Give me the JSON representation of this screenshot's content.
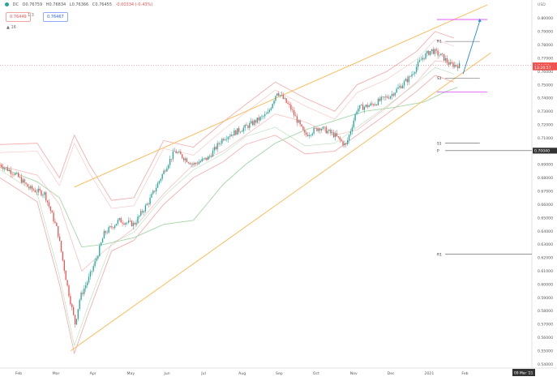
{
  "header": {
    "symbol_line": "DC",
    "open": "O0.76759",
    "high": "H0.76834",
    "low": "L0.76366",
    "close": "C0.76455",
    "change": "-0.00334 (-0.43%)",
    "bid": "0.76449",
    "spread": "1.3",
    "ask": "0.76467",
    "indicators_toggle": "16",
    "currency": "USD"
  },
  "colors": {
    "up": "#26a69a",
    "down": "#ef5350",
    "channel": "#ffb74d",
    "bollinger": "#f6a6a6",
    "ma_slow": "#a5d6a7",
    "pivot_line": "#555555",
    "level_magenta": "#e040fb",
    "projection": "#1e88e5",
    "price_badge": "#ef5350"
  },
  "chart_data": {
    "type": "candlestick",
    "title": "",
    "xlabel": "",
    "ylabel": "",
    "x_ticks": [
      "Feb",
      "Mar",
      "Apr",
      "May",
      "Jun",
      "Jul",
      "Aug",
      "Sep",
      "Oct",
      "Nov",
      "Dec",
      "2021",
      "Feb"
    ],
    "x_tick_positions": [
      0.5,
      1.5,
      2.5,
      3.5,
      4.5,
      5.5,
      6.5,
      7.5,
      8.5,
      9.5,
      10.5,
      11.5,
      12.5
    ],
    "x_range": [
      0,
      14.3
    ],
    "y_range": [
      0.537,
      0.81
    ],
    "y_ticks": [
      "0.80000",
      "0.79000",
      "0.78000",
      "0.77000",
      "0.76000",
      "0.75000",
      "0.74000",
      "0.73000",
      "0.72000",
      "0.71000",
      "0.70000",
      "0.69000",
      "0.68000",
      "0.67000",
      "0.66000",
      "0.65000",
      "0.64000",
      "0.63000",
      "0.62000",
      "0.61000",
      "0.60000",
      "0.59000",
      "0.58000",
      "0.57000",
      "0.56000",
      "0.55000",
      "0.54000"
    ],
    "date_badge": "09 Mar '21",
    "price_badges": [
      {
        "label": "0.76455",
        "value": 0.7645,
        "color": "#ef5350"
      },
      {
        "label": "13:20:57",
        "value": 0.763,
        "color": "#ef5350"
      },
      {
        "label": "0.70040",
        "value": 0.7004,
        "color": "#333333"
      }
    ],
    "key_points": [
      {
        "x": 0.0,
        "close": 0.69
      },
      {
        "x": 0.4,
        "close": 0.683
      },
      {
        "x": 0.8,
        "close": 0.672
      },
      {
        "x": 1.2,
        "close": 0.668
      },
      {
        "x": 1.55,
        "close": 0.64
      },
      {
        "x": 1.8,
        "close": 0.6
      },
      {
        "x": 2.02,
        "close": 0.57
      },
      {
        "x": 2.15,
        "close": 0.59
      },
      {
        "x": 2.4,
        "close": 0.605
      },
      {
        "x": 2.6,
        "close": 0.62
      },
      {
        "x": 2.8,
        "close": 0.638
      },
      {
        "x": 3.2,
        "close": 0.648
      },
      {
        "x": 3.6,
        "close": 0.645
      },
      {
        "x": 4.0,
        "close": 0.662
      },
      {
        "x": 4.5,
        "close": 0.69
      },
      {
        "x": 4.7,
        "close": 0.7
      },
      {
        "x": 5.2,
        "close": 0.69
      },
      {
        "x": 5.6,
        "close": 0.695
      },
      {
        "x": 6.0,
        "close": 0.71
      },
      {
        "x": 6.6,
        "close": 0.718
      },
      {
        "x": 7.2,
        "close": 0.728
      },
      {
        "x": 7.45,
        "close": 0.745
      },
      {
        "x": 7.8,
        "close": 0.733
      },
      {
        "x": 8.2,
        "close": 0.712
      },
      {
        "x": 8.6,
        "close": 0.718
      },
      {
        "x": 9.0,
        "close": 0.712
      },
      {
        "x": 9.3,
        "close": 0.704
      },
      {
        "x": 9.6,
        "close": 0.732
      },
      {
        "x": 10.0,
        "close": 0.735
      },
      {
        "x": 10.5,
        "close": 0.742
      },
      {
        "x": 11.0,
        "close": 0.755
      },
      {
        "x": 11.35,
        "close": 0.77
      },
      {
        "x": 11.6,
        "close": 0.776
      },
      {
        "x": 11.9,
        "close": 0.771
      },
      {
        "x": 12.1,
        "close": 0.765
      },
      {
        "x": 12.35,
        "close": 0.7645
      }
    ],
    "channel_upper": [
      [
        2.0,
        0.673
      ],
      [
        13.1,
        0.81
      ]
    ],
    "channel_lower": [
      [
        1.9,
        0.55
      ],
      [
        13.2,
        0.774
      ]
    ],
    "bollinger_upper": [
      [
        0.0,
        0.705
      ],
      [
        1.0,
        0.706
      ],
      [
        1.6,
        0.68
      ],
      [
        2.0,
        0.712
      ],
      [
        2.4,
        0.69
      ],
      [
        3.0,
        0.663
      ],
      [
        3.6,
        0.665
      ],
      [
        4.4,
        0.708
      ],
      [
        5.2,
        0.703
      ],
      [
        6.0,
        0.722
      ],
      [
        6.6,
        0.735
      ],
      [
        7.4,
        0.752
      ],
      [
        8.2,
        0.74
      ],
      [
        9.0,
        0.73
      ],
      [
        9.6,
        0.75
      ],
      [
        10.4,
        0.76
      ],
      [
        11.2,
        0.775
      ],
      [
        11.7,
        0.79
      ],
      [
        12.2,
        0.785
      ]
    ],
    "bollinger_lower": [
      [
        0.0,
        0.68
      ],
      [
        1.0,
        0.662
      ],
      [
        1.6,
        0.6
      ],
      [
        2.0,
        0.548
      ],
      [
        2.4,
        0.58
      ],
      [
        3.0,
        0.625
      ],
      [
        3.6,
        0.633
      ],
      [
        4.4,
        0.66
      ],
      [
        5.2,
        0.68
      ],
      [
        6.0,
        0.692
      ],
      [
        6.6,
        0.705
      ],
      [
        7.4,
        0.712
      ],
      [
        8.2,
        0.698
      ],
      [
        9.0,
        0.7
      ],
      [
        9.6,
        0.712
      ],
      [
        10.4,
        0.728
      ],
      [
        11.2,
        0.745
      ],
      [
        11.7,
        0.757
      ],
      [
        12.2,
        0.752
      ]
    ],
    "ma_slow": [
      [
        0.0,
        0.688
      ],
      [
        1.0,
        0.677
      ],
      [
        1.6,
        0.665
      ],
      [
        2.2,
        0.628
      ],
      [
        2.8,
        0.63
      ],
      [
        3.6,
        0.635
      ],
      [
        4.4,
        0.645
      ],
      [
        5.2,
        0.648
      ],
      [
        6.0,
        0.675
      ],
      [
        6.6,
        0.69
      ],
      [
        7.4,
        0.706
      ],
      [
        8.2,
        0.716
      ],
      [
        9.0,
        0.723
      ],
      [
        9.8,
        0.73
      ],
      [
        10.6,
        0.733
      ],
      [
        11.4,
        0.737
      ],
      [
        12.0,
        0.745
      ],
      [
        12.3,
        0.748
      ]
    ],
    "ma_fast": [
      [
        0.0,
        0.689
      ],
      [
        1.0,
        0.682
      ],
      [
        1.6,
        0.66
      ],
      [
        2.2,
        0.61
      ],
      [
        2.8,
        0.625
      ],
      [
        3.6,
        0.642
      ],
      [
        4.4,
        0.668
      ],
      [
        5.2,
        0.69
      ],
      [
        6.0,
        0.7
      ],
      [
        6.6,
        0.712
      ],
      [
        7.4,
        0.728
      ],
      [
        8.2,
        0.722
      ],
      [
        9.0,
        0.712
      ],
      [
        9.6,
        0.716
      ],
      [
        10.4,
        0.733
      ],
      [
        11.2,
        0.752
      ],
      [
        11.7,
        0.768
      ],
      [
        12.3,
        0.766
      ]
    ],
    "pivots": [
      {
        "label": "R1",
        "value": 0.7825,
        "x_start": 11.75,
        "x_end": 12.9
      },
      {
        "label": "S1",
        "value": 0.755,
        "x_start": 11.75,
        "x_end": 12.9
      },
      {
        "label": "S1",
        "value": 0.706,
        "x_start": 11.75,
        "x_end": 12.9
      },
      {
        "label": "P",
        "value": 0.7004,
        "x_start": 11.75,
        "x_end": 14.3
      },
      {
        "label": "R1",
        "value": 0.6225,
        "x_start": 11.75,
        "x_end": 14.3
      }
    ],
    "magenta_levels": [
      {
        "value": 0.799,
        "x_start": 11.75,
        "x_end": 13.1
      },
      {
        "value": 0.7445,
        "x_start": 11.75,
        "x_end": 13.1
      }
    ],
    "projection": [
      [
        12.45,
        0.758
      ],
      [
        12.9,
        0.798
      ]
    ]
  }
}
